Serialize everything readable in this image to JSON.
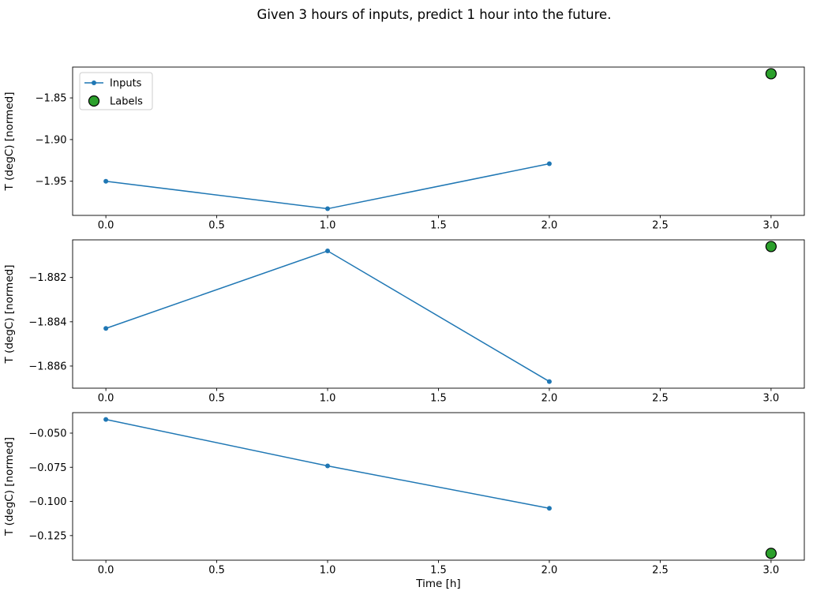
{
  "figure": {
    "title": "Given 3 hours of inputs, predict 1 hour into the future.",
    "background_color": "#ffffff",
    "text_color": "#000000"
  },
  "chart_data": [
    {
      "type": "line",
      "title": "",
      "xlabel": "",
      "ylabel": "T (degC) [normed]",
      "grid": false,
      "xlim": [
        -0.15,
        3.15
      ],
      "ylim": [
        -1.991,
        -1.813
      ],
      "x_tick_values": [
        0,
        0.5,
        1,
        1.5,
        2,
        2.5,
        3
      ],
      "x_tick_labels": [
        "0.0",
        "0.5",
        "1.0",
        "1.5",
        "2.0",
        "2.5",
        "3.0"
      ],
      "y_tick_values": [
        -1.85,
        -1.9,
        -1.95
      ],
      "y_tick_labels": [
        "−1.85",
        "−1.90",
        "−1.95"
      ],
      "legend": {
        "show": true,
        "position": "upper-left",
        "entries": [
          "Inputs",
          "Labels"
        ]
      },
      "series": [
        {
          "name": "Inputs",
          "kind": "line_with_markers",
          "color": "#1f77b4",
          "line_width": 1.5,
          "marker": "circle",
          "marker_size": 3,
          "x": [
            0,
            1,
            2
          ],
          "y": [
            -1.95,
            -1.983,
            -1.929
          ]
        },
        {
          "name": "Labels",
          "kind": "scatter",
          "color": "#2ca02c",
          "edge_color": "#000000",
          "marker": "circle",
          "marker_size": 6.5,
          "x": [
            3
          ],
          "y": [
            -1.821
          ]
        }
      ]
    },
    {
      "type": "line",
      "title": "",
      "xlabel": "",
      "ylabel": "T (degC) [normed]",
      "grid": false,
      "xlim": [
        -0.15,
        3.15
      ],
      "ylim": [
        -1.887,
        -1.8803
      ],
      "x_tick_values": [
        0,
        0.5,
        1,
        1.5,
        2,
        2.5,
        3
      ],
      "x_tick_labels": [
        "0.0",
        "0.5",
        "1.0",
        "1.5",
        "2.0",
        "2.5",
        "3.0"
      ],
      "y_tick_values": [
        -1.882,
        -1.884,
        -1.886
      ],
      "y_tick_labels": [
        "−1.882",
        "−1.884",
        "−1.886"
      ],
      "legend": {
        "show": false,
        "position": "",
        "entries": []
      },
      "series": [
        {
          "name": "Inputs",
          "kind": "line_with_markers",
          "color": "#1f77b4",
          "line_width": 1.5,
          "marker": "circle",
          "marker_size": 3,
          "x": [
            0,
            1,
            2
          ],
          "y": [
            -1.8843,
            -1.8808,
            -1.8867
          ]
        },
        {
          "name": "Labels",
          "kind": "scatter",
          "color": "#2ca02c",
          "edge_color": "#000000",
          "marker": "circle",
          "marker_size": 6.5,
          "x": [
            3
          ],
          "y": [
            -1.8806
          ]
        }
      ]
    },
    {
      "type": "line",
      "title": "",
      "xlabel": "Time [h]",
      "ylabel": "T (degC) [normed]",
      "grid": false,
      "xlim": [
        -0.15,
        3.15
      ],
      "ylim": [
        -0.143,
        -0.035
      ],
      "x_tick_values": [
        0,
        0.5,
        1,
        1.5,
        2,
        2.5,
        3
      ],
      "x_tick_labels": [
        "0.0",
        "0.5",
        "1.0",
        "1.5",
        "2.0",
        "2.5",
        "3.0"
      ],
      "y_tick_values": [
        -0.05,
        -0.075,
        -0.1,
        -0.125
      ],
      "y_tick_labels": [
        "−0.050",
        "−0.075",
        "−0.100",
        "−0.125"
      ],
      "legend": {
        "show": false,
        "position": "",
        "entries": []
      },
      "series": [
        {
          "name": "Inputs",
          "kind": "line_with_markers",
          "color": "#1f77b4",
          "line_width": 1.5,
          "marker": "circle",
          "marker_size": 3,
          "x": [
            0,
            1,
            2
          ],
          "y": [
            -0.04,
            -0.074,
            -0.105
          ]
        },
        {
          "name": "Labels",
          "kind": "scatter",
          "color": "#2ca02c",
          "edge_color": "#000000",
          "marker": "circle",
          "marker_size": 6.5,
          "x": [
            3
          ],
          "y": [
            -0.138
          ]
        }
      ]
    }
  ]
}
